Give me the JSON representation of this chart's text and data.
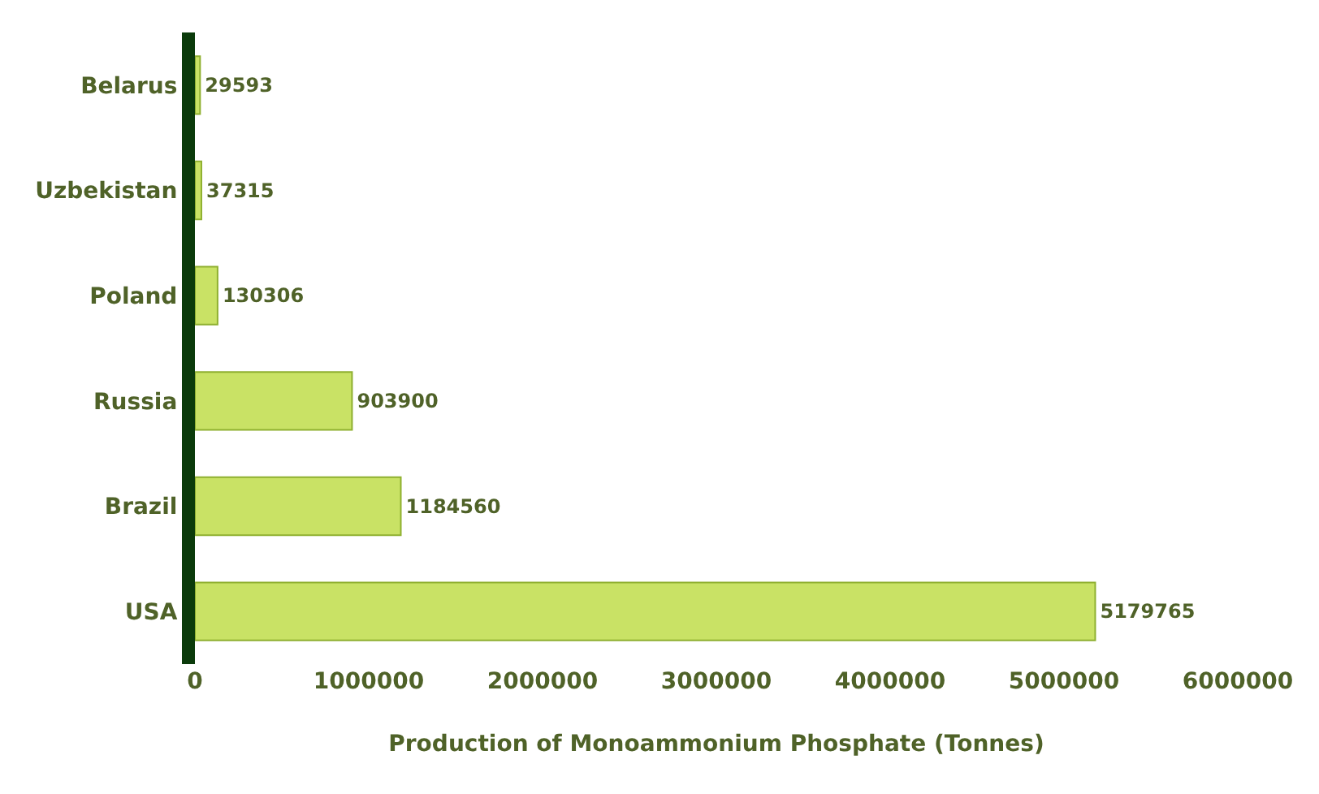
{
  "chart_data": {
    "type": "bar",
    "orientation": "horizontal",
    "xlabel": "Production of Monoammonium Phosphate (Tonnes)",
    "categories": [
      "Belarus",
      "Uzbekistan",
      "Poland",
      "Russia",
      "Brazil",
      "USA"
    ],
    "values": [
      29593,
      37315,
      130306,
      903900,
      1184560,
      5179765
    ],
    "color": "#c9e265",
    "xlim": [
      0,
      6000000
    ],
    "xticks": [
      0,
      1000000,
      2000000,
      3000000,
      4000000,
      5000000,
      6000000
    ],
    "data_labels": true
  }
}
